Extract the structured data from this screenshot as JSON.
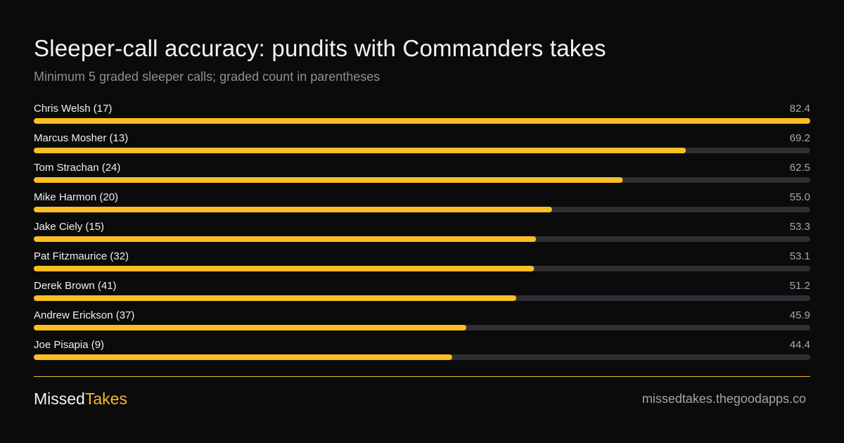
{
  "header": {
    "title": "Sleeper-call accuracy: pundits with Commanders takes",
    "subtitle": "Minimum 5 graded sleeper calls; graded count in parentheses"
  },
  "chart_data": {
    "type": "bar",
    "orientation": "horizontal",
    "title": "Sleeper-call accuracy: pundits with Commanders takes",
    "subtitle": "Minimum 5 graded sleeper calls; graded count in parentheses",
    "xlim": [
      0,
      82.4
    ],
    "grid": false,
    "legend": "none",
    "categories": [
      "Chris Welsh (17)",
      "Marcus Mosher (13)",
      "Tom Strachan (24)",
      "Mike Harmon (20)",
      "Jake Ciely (15)",
      "Pat Fitzmaurice (32)",
      "Derek Brown (41)",
      "Andrew Erickson (37)",
      "Joe Pisapia (9)"
    ],
    "values": [
      82.4,
      69.2,
      62.5,
      55.0,
      53.3,
      53.1,
      51.2,
      45.9,
      44.4
    ],
    "value_labels": [
      "82.4",
      "69.2",
      "62.5",
      "55.0",
      "53.3",
      "53.1",
      "51.2",
      "45.9",
      "44.4"
    ],
    "colors": {
      "bar": "#fbbf24",
      "track": "#2f2e35",
      "accent": "#f5b82e"
    }
  },
  "footer": {
    "brand_part_1": "Missed",
    "brand_part_2": "Takes",
    "url": "missedtakes.thegoodapps.co"
  }
}
